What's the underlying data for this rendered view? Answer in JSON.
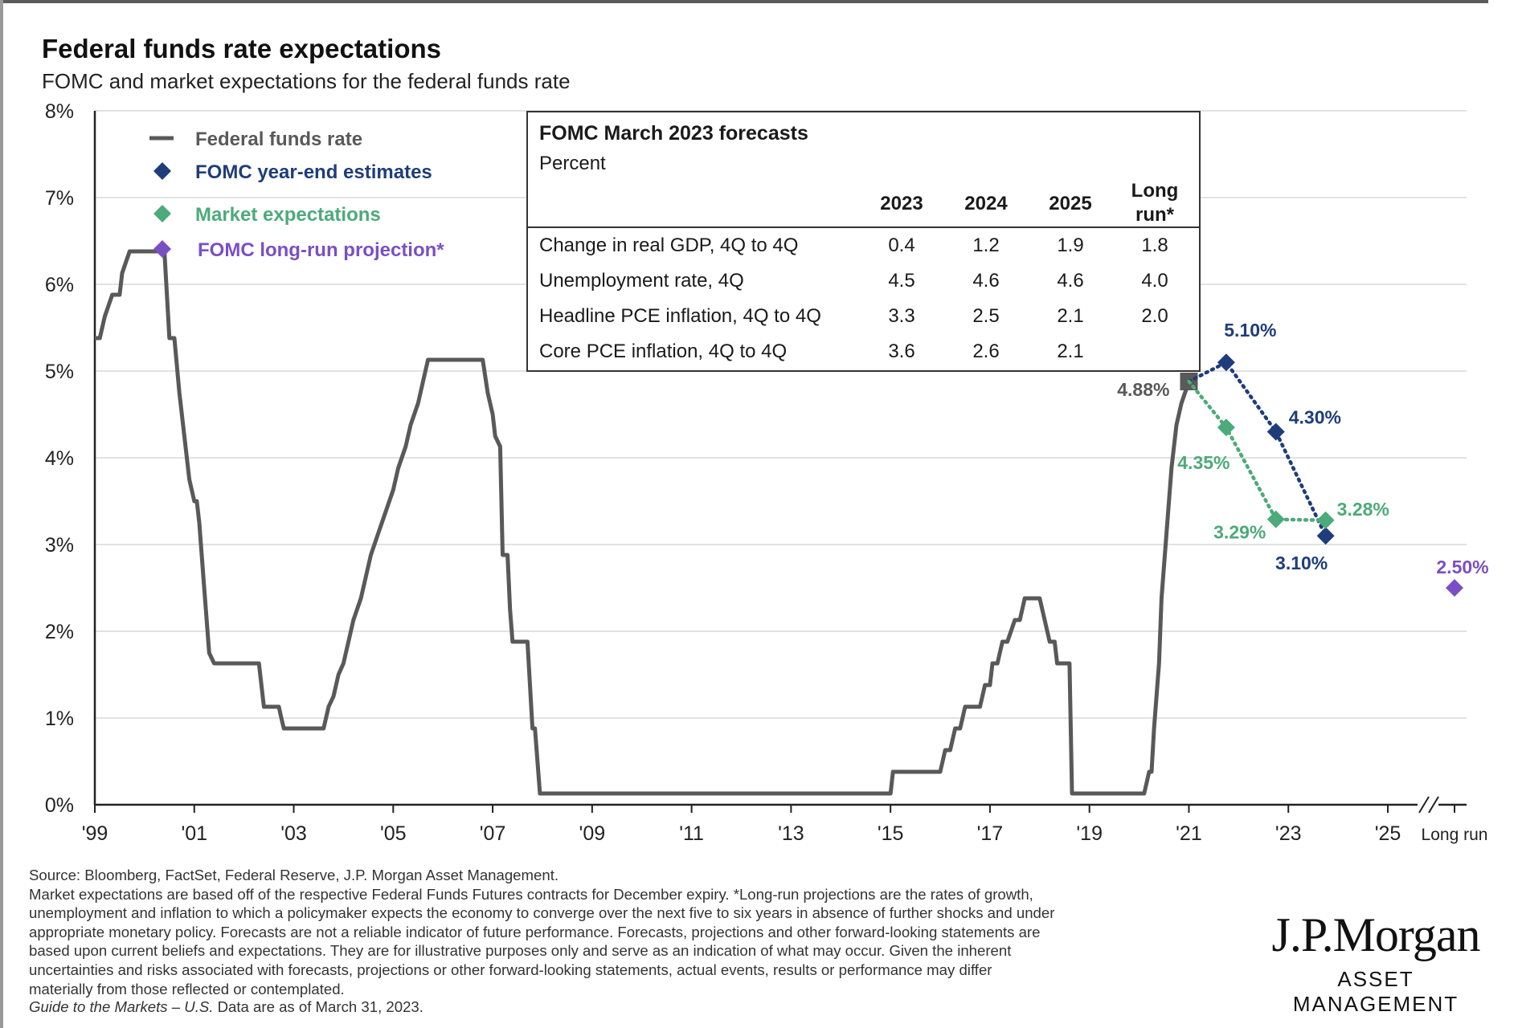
{
  "header": {
    "title": "Federal funds rate expectations",
    "subtitle": "FOMC and market expectations for the federal funds rate"
  },
  "chart_data": {
    "type": "line",
    "ylim": [
      0,
      8
    ],
    "y_ticks": [
      "0%",
      "1%",
      "2%",
      "3%",
      "4%",
      "5%",
      "6%",
      "7%",
      "8%"
    ],
    "x_ticks": [
      "'99",
      "'01",
      "'03",
      "'05",
      "'07",
      "'09",
      "'11",
      "'13",
      "'15",
      "'17",
      "'19",
      "'21",
      "'23",
      "'25",
      "Long run"
    ],
    "grid": true,
    "legend": {
      "position": "top-left",
      "items": [
        {
          "label": "Federal funds rate",
          "color": "#595959",
          "marker": "line"
        },
        {
          "label": "FOMC year-end estimates",
          "color": "#1f3d7a",
          "marker": "diamond"
        },
        {
          "label": "Market expectations",
          "color": "#4daa7a",
          "marker": "diamond"
        },
        {
          "label": "FOMC long-run projection*",
          "color": "#7a4fc4",
          "marker": "diamond"
        }
      ]
    },
    "series": [
      {
        "name": "Federal funds rate",
        "color": "#595959",
        "step": true,
        "points": [
          [
            1999.0,
            5.38
          ],
          [
            1999.1,
            5.38
          ],
          [
            1999.2,
            5.63
          ],
          [
            1999.35,
            5.88
          ],
          [
            1999.5,
            5.88
          ],
          [
            1999.55,
            6.13
          ],
          [
            1999.7,
            6.38
          ],
          [
            2000.0,
            6.38
          ],
          [
            2000.2,
            6.38
          ],
          [
            2000.4,
            6.38
          ],
          [
            2000.5,
            5.38
          ],
          [
            2000.6,
            5.38
          ],
          [
            2000.7,
            4.75
          ],
          [
            2000.8,
            4.25
          ],
          [
            2000.9,
            3.75
          ],
          [
            2001.0,
            3.5
          ],
          [
            2001.05,
            3.5
          ],
          [
            2001.1,
            3.25
          ],
          [
            2001.2,
            2.5
          ],
          [
            2001.3,
            1.75
          ],
          [
            2001.4,
            1.63
          ],
          [
            2001.6,
            1.63
          ],
          [
            2002.0,
            1.63
          ],
          [
            2002.3,
            1.63
          ],
          [
            2002.4,
            1.13
          ],
          [
            2002.6,
            1.13
          ],
          [
            2002.7,
            1.13
          ],
          [
            2002.75,
            1.0
          ],
          [
            2002.8,
            0.88
          ],
          [
            2003.0,
            0.88
          ],
          [
            2003.3,
            0.88
          ],
          [
            2003.6,
            0.88
          ],
          [
            2003.7,
            1.13
          ],
          [
            2003.8,
            1.25
          ],
          [
            2003.9,
            1.5
          ],
          [
            2004.0,
            1.63
          ],
          [
            2004.1,
            1.88
          ],
          [
            2004.2,
            2.13
          ],
          [
            2004.35,
            2.38
          ],
          [
            2004.45,
            2.63
          ],
          [
            2004.55,
            2.88
          ],
          [
            2004.7,
            3.13
          ],
          [
            2004.85,
            3.38
          ],
          [
            2005.0,
            3.63
          ],
          [
            2005.1,
            3.88
          ],
          [
            2005.25,
            4.13
          ],
          [
            2005.35,
            4.38
          ],
          [
            2005.5,
            4.63
          ],
          [
            2005.6,
            4.88
          ],
          [
            2005.7,
            5.13
          ],
          [
            2005.9,
            5.13
          ],
          [
            2006.0,
            5.13
          ],
          [
            2006.3,
            5.13
          ],
          [
            2006.5,
            5.13
          ],
          [
            2006.7,
            5.13
          ],
          [
            2006.8,
            5.13
          ],
          [
            2006.9,
            4.75
          ],
          [
            2007.0,
            4.5
          ],
          [
            2007.05,
            4.25
          ],
          [
            2007.15,
            4.13
          ],
          [
            2007.2,
            2.88
          ],
          [
            2007.3,
            2.88
          ],
          [
            2007.35,
            2.25
          ],
          [
            2007.4,
            1.88
          ],
          [
            2007.6,
            1.88
          ],
          [
            2007.7,
            1.88
          ],
          [
            2007.8,
            0.88
          ],
          [
            2007.85,
            0.88
          ],
          [
            2007.95,
            0.13
          ],
          [
            2008.0,
            0.13
          ],
          [
            2009.0,
            0.13
          ],
          [
            2011.0,
            0.13
          ],
          [
            2013.0,
            0.13
          ],
          [
            2014.9,
            0.13
          ],
          [
            2015.0,
            0.13
          ],
          [
            2015.05,
            0.38
          ],
          [
            2015.3,
            0.38
          ],
          [
            2015.7,
            0.38
          ],
          [
            2015.9,
            0.38
          ],
          [
            2016.0,
            0.38
          ],
          [
            2016.1,
            0.63
          ],
          [
            2016.2,
            0.63
          ],
          [
            2016.3,
            0.88
          ],
          [
            2016.4,
            0.88
          ],
          [
            2016.5,
            1.13
          ],
          [
            2016.6,
            1.13
          ],
          [
            2016.8,
            1.13
          ],
          [
            2016.9,
            1.38
          ],
          [
            2017.0,
            1.38
          ],
          [
            2017.05,
            1.63
          ],
          [
            2017.15,
            1.63
          ],
          [
            2017.25,
            1.88
          ],
          [
            2017.35,
            1.88
          ],
          [
            2017.5,
            2.13
          ],
          [
            2017.6,
            2.13
          ],
          [
            2017.7,
            2.38
          ],
          [
            2017.8,
            2.38
          ],
          [
            2018.0,
            2.38
          ],
          [
            2018.1,
            2.13
          ],
          [
            2018.2,
            1.88
          ],
          [
            2018.3,
            1.88
          ],
          [
            2018.35,
            1.63
          ],
          [
            2018.5,
            1.63
          ],
          [
            2018.6,
            1.63
          ],
          [
            2018.65,
            0.13
          ],
          [
            2019.0,
            0.13
          ],
          [
            2019.5,
            0.13
          ],
          [
            2020.0,
            0.13
          ],
          [
            2020.1,
            0.13
          ],
          [
            2020.2,
            0.38
          ],
          [
            2020.25,
            0.38
          ],
          [
            2020.3,
            0.88
          ],
          [
            2020.4,
            1.63
          ],
          [
            2020.45,
            2.38
          ],
          [
            2020.55,
            3.13
          ],
          [
            2020.65,
            3.88
          ],
          [
            2020.75,
            4.38
          ],
          [
            2020.85,
            4.63
          ],
          [
            2021.0,
            4.88
          ]
        ]
      },
      {
        "name": "FOMC year-end estimates",
        "color": "#1f3d7a",
        "points": [
          [
            2021.0,
            4.88
          ],
          [
            2021.75,
            5.1
          ],
          [
            2022.75,
            4.3
          ],
          [
            2023.75,
            3.1
          ]
        ]
      },
      {
        "name": "Market expectations",
        "color": "#4daa7a",
        "points": [
          [
            2021.0,
            4.88
          ],
          [
            2021.75,
            4.35
          ],
          [
            2022.75,
            3.29
          ],
          [
            2023.75,
            3.28
          ]
        ]
      },
      {
        "name": "FOMC long-run projection*",
        "color": "#7a4fc4",
        "points": [
          [
            "Long run",
            2.5
          ]
        ]
      }
    ],
    "annotations": [
      {
        "text": "4.88%",
        "color": "#595959"
      },
      {
        "text": "5.10%",
        "color": "#1f3d7a"
      },
      {
        "text": "4.30%",
        "color": "#1f3d7a"
      },
      {
        "text": "3.10%",
        "color": "#1f3d7a"
      },
      {
        "text": "4.35%",
        "color": "#4daa7a"
      },
      {
        "text": "3.29%",
        "color": "#4daa7a"
      },
      {
        "text": "3.28%",
        "color": "#4daa7a"
      },
      {
        "text": "2.50%",
        "color": "#7a4fc4"
      }
    ]
  },
  "forecast_table": {
    "title": "FOMC March 2023 forecasts",
    "unit": "Percent",
    "columns": [
      "2023",
      "2024",
      "2025",
      "Long",
      "run*"
    ],
    "rows": [
      {
        "label": "Change in real GDP, 4Q to 4Q",
        "values": [
          "0.4",
          "1.2",
          "1.9",
          "1.8"
        ]
      },
      {
        "label": "Unemployment rate, 4Q",
        "values": [
          "4.5",
          "4.6",
          "4.6",
          "4.0"
        ]
      },
      {
        "label": "Headline PCE inflation, 4Q to 4Q",
        "values": [
          "3.3",
          "2.5",
          "2.1",
          "2.0"
        ]
      },
      {
        "label": "Core PCE inflation, 4Q to 4Q",
        "values": [
          "3.6",
          "2.6",
          "2.1",
          ""
        ]
      }
    ]
  },
  "footer": {
    "source": "Source: Bloomberg, FactSet, Federal Reserve, J.P. Morgan Asset Management.",
    "lines": [
      "Market expectations are based off of the respective Federal Funds Futures contracts for December expiry. *Long-run projections are the rates of growth,",
      "unemployment and inflation to which a policymaker expects the economy to converge over the next five to six years in absence of further shocks and under",
      "appropriate monetary policy. Forecasts are not a reliable indicator of future performance. Forecasts, projections and other forward-looking statements are",
      "based upon current beliefs and expectations. They are for illustrative purposes only and serve as an indication of what may occur. Given the inherent",
      "uncertainties and risks associated with forecasts, projections or other forward-looking statements, actual events, results or performance may differ",
      "materially from those reflected or contemplated."
    ],
    "guide_italic": "Guide to the Markets – U.S.",
    "guide_rest": " Data are as of March 31, 2023."
  },
  "logo": {
    "brand": "J.P.Morgan",
    "sub": "ASSET MANAGEMENT"
  }
}
